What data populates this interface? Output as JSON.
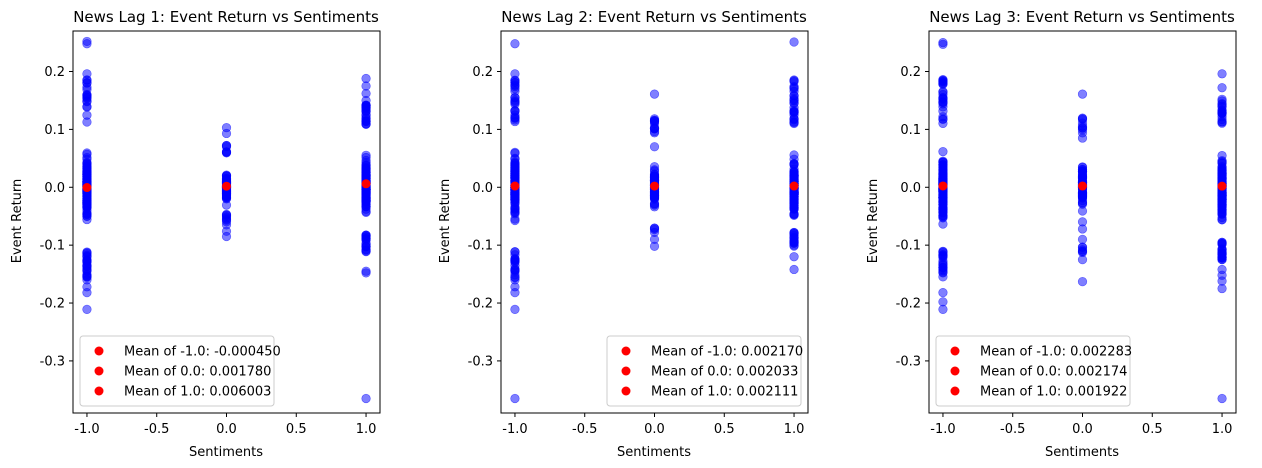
{
  "chart_data": [
    {
      "type": "scatter",
      "title": "News Lag 1: Event Return vs Sentiments",
      "xlabel": "Sentiments",
      "ylabel": "Event Return",
      "xlim": [
        -1.1,
        1.1
      ],
      "ylim": [
        -0.39,
        0.27
      ],
      "xticks": [
        "-1.0",
        "-0.5",
        "0.0",
        "0.5",
        "1.0"
      ],
      "yticks": [
        "0.2",
        "0.1",
        "0.0",
        "-0.1",
        "-0.2",
        "-0.3"
      ],
      "grid": false,
      "legend_position": "lower-left",
      "colors": {
        "points": "#0000ff",
        "means": "#ff0000"
      },
      "point_ranges": [
        {
          "x": -1.0,
          "min": -0.21,
          "max": 0.25,
          "outliers": [
            0.252,
            0.248,
            0.196,
            0.18,
            0.155,
            0.148,
            -0.16,
            -0.172,
            -0.182,
            -0.211
          ]
        },
        {
          "x": 0.0,
          "min": -0.08,
          "max": 0.1,
          "outliers": [
            0.103,
            0.093,
            0.072,
            -0.065,
            -0.076,
            -0.085
          ]
        },
        {
          "x": 1.0,
          "min": -0.15,
          "max": 0.19,
          "outliers": [
            0.188,
            0.175,
            0.162,
            0.15,
            0.14,
            -0.145,
            -0.148,
            -0.365
          ]
        }
      ],
      "means": [
        {
          "x": -1.0,
          "y": -0.00045,
          "label": "Mean of -1.0: -0.000450"
        },
        {
          "x": 0.0,
          "y": 0.00178,
          "label": "Mean of 0.0: 0.001780"
        },
        {
          "x": 1.0,
          "y": 0.006003,
          "label": "Mean of 1.0: 0.006003"
        }
      ]
    },
    {
      "type": "scatter",
      "title": "News Lag 2: Event Return vs Sentiments",
      "xlabel": "Sentiments",
      "ylabel": "Event Return",
      "xlim": [
        -1.1,
        1.1
      ],
      "ylim": [
        -0.39,
        0.27
      ],
      "xticks": [
        "-1.0",
        "-0.5",
        "0.0",
        "0.5",
        "1.0"
      ],
      "yticks": [
        "0.2",
        "0.1",
        "0.0",
        "-0.1",
        "-0.2",
        "-0.3"
      ],
      "grid": false,
      "legend_position": "lower-right",
      "colors": {
        "points": "#0000ff",
        "means": "#ff0000"
      },
      "point_ranges": [
        {
          "x": -1.0,
          "min": -0.21,
          "max": 0.25,
          "outliers": [
            0.248,
            0.196,
            0.185,
            0.155,
            0.148,
            -0.16,
            -0.172,
            -0.182,
            -0.211,
            -0.365
          ]
        },
        {
          "x": 0.0,
          "min": -0.1,
          "max": 0.16,
          "outliers": [
            0.161,
            0.103,
            0.07,
            -0.078,
            -0.09,
            -0.102
          ]
        },
        {
          "x": 1.0,
          "min": -0.14,
          "max": 0.25,
          "outliers": [
            0.251,
            0.172,
            0.158,
            0.13,
            0.125,
            -0.12,
            -0.142
          ]
        }
      ],
      "means": [
        {
          "x": -1.0,
          "y": 0.00217,
          "label": "Mean of -1.0: 0.002170"
        },
        {
          "x": 0.0,
          "y": 0.002033,
          "label": "Mean of 0.0: 0.002033"
        },
        {
          "x": 1.0,
          "y": 0.002111,
          "label": "Mean of 1.0: 0.002111"
        }
      ]
    },
    {
      "type": "scatter",
      "title": "News Lag 3: Event Return vs Sentiments",
      "xlabel": "Sentiments",
      "ylabel": "Event Return",
      "xlim": [
        -1.1,
        1.1
      ],
      "ylim": [
        -0.39,
        0.27
      ],
      "xticks": [
        "-1.0",
        "-0.5",
        "0.0",
        "0.5",
        "1.0"
      ],
      "yticks": [
        "0.2",
        "0.1",
        "0.0",
        "-0.1",
        "-0.2",
        "-0.3"
      ],
      "grid": false,
      "legend_position": "lower-left",
      "colors": {
        "points": "#0000ff",
        "means": "#ff0000"
      },
      "point_ranges": [
        {
          "x": -1.0,
          "min": -0.21,
          "max": 0.25,
          "outliers": [
            0.25,
            0.247,
            0.186,
            0.18,
            0.155,
            0.148,
            -0.148,
            -0.182,
            -0.198,
            -0.211
          ]
        },
        {
          "x": 0.0,
          "min": -0.16,
          "max": 0.16,
          "outliers": [
            0.161,
            0.094,
            0.085,
            -0.072,
            -0.09,
            -0.125,
            -0.163
          ]
        },
        {
          "x": 1.0,
          "min": -0.17,
          "max": 0.2,
          "outliers": [
            0.196,
            0.172,
            0.152,
            0.132,
            -0.142,
            -0.152,
            -0.162,
            -0.175,
            -0.365
          ]
        }
      ],
      "means": [
        {
          "x": -1.0,
          "y": 0.002283,
          "label": "Mean of -1.0: 0.002283"
        },
        {
          "x": 0.0,
          "y": 0.002174,
          "label": "Mean of 0.0: 0.002174"
        },
        {
          "x": 1.0,
          "y": 0.001922,
          "label": "Mean of 1.0: 0.001922"
        }
      ]
    }
  ]
}
